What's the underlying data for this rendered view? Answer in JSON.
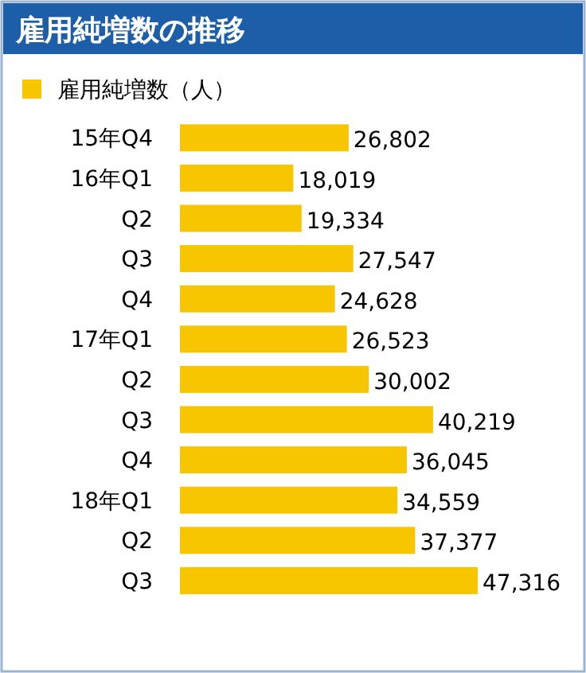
{
  "chart_data": {
    "type": "bar",
    "orientation": "horizontal",
    "title": "雇用純増数の推移",
    "categories": [
      "15年Q4",
      "16年Q1",
      "Q2",
      "Q3",
      "Q4",
      "17年Q1",
      "Q2",
      "Q3",
      "Q4",
      "18年Q1",
      "Q2",
      "Q3"
    ],
    "series": [
      {
        "name": "雇用純増数（人）",
        "color": "#f7c600",
        "values": [
          26802,
          18019,
          19334,
          27547,
          24628,
          26523,
          30002,
          40219,
          36045,
          34559,
          37377,
          47316
        ],
        "value_labels": [
          "26,802",
          "18,019",
          "19,334",
          "27,547",
          "24,628",
          "26,523",
          "30,002",
          "40,219",
          "36,045",
          "34,559",
          "37,377",
          "47,316"
        ]
      }
    ],
    "legend": "top left"
  }
}
